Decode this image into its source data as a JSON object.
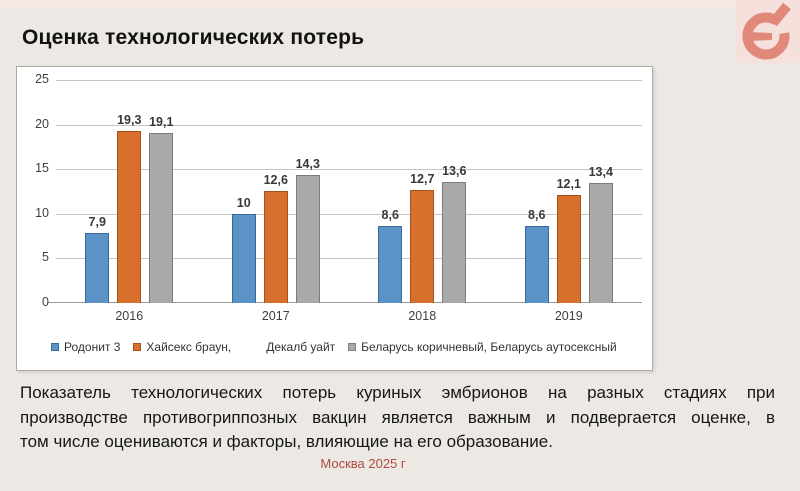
{
  "slide": {
    "title": "Оценка технологических потерь",
    "footer": "Москва 2025 г",
    "body_text": {
      "lines": [
        "Показатель технологических потерь куриных эмбрионов на разных стадиях при",
        "производстве противогриппозных вакцин является важным и подвергается оценке, в",
        "том числе оцениваются и факторы, влияющие на его образование."
      ]
    },
    "logo": {
      "name": "circular-arrow-logo",
      "glyph_color": "#E0887A",
      "background_color": "#F6E0DB"
    },
    "colors": {
      "slide_background": "#ECE9E5",
      "top_strip": "#F4E7E4",
      "footer_text": "#B04B3E",
      "panel_border": "#ACA9A5"
    }
  },
  "chart_data": {
    "type": "bar",
    "title": "",
    "xlabel": "",
    "ylabel": "",
    "categories": [
      "2016",
      "2017",
      "2018",
      "2019"
    ],
    "series": [
      {
        "name": "Родонит 3",
        "color": "#5B93C7",
        "border": "#3A6A9B",
        "values": [
          7.9,
          10,
          8.6,
          8.6
        ],
        "labels": [
          "7,9",
          "10",
          "8,6",
          "8,6"
        ]
      },
      {
        "name": "Хайсекс браун, Декалб уайт",
        "color": "#D96F2D",
        "border": "#A5531C",
        "values": [
          19.3,
          12.6,
          12.7,
          12.1
        ],
        "labels": [
          "19,3",
          "12,6",
          "12,7",
          "12,1"
        ]
      },
      {
        "name": "Беларусь коричневый, Беларусь аутосексный",
        "color": "#A9A9A9",
        "border": "#7C7C7C",
        "values": [
          19.1,
          14.3,
          13.6,
          13.4
        ],
        "labels": [
          "19,1",
          "14,3",
          "13,6",
          "13,4"
        ]
      }
    ],
    "ylim": [
      0,
      25
    ],
    "yticks": [
      0,
      5,
      10,
      15,
      20,
      25
    ],
    "grid": true,
    "legend_position": "bottom",
    "legend_items": [
      {
        "swatch": 0,
        "label": "Родонит 3",
        "gap_before": false
      },
      {
        "swatch": 1,
        "label": "Хайсекс браун,",
        "gap_before": false
      },
      {
        "swatch": null,
        "label": "Декалб уайт",
        "gap_before": true
      },
      {
        "swatch": 2,
        "label": "Беларусь коричневый, Беларусь аутосексный",
        "gap_before": false
      }
    ]
  }
}
